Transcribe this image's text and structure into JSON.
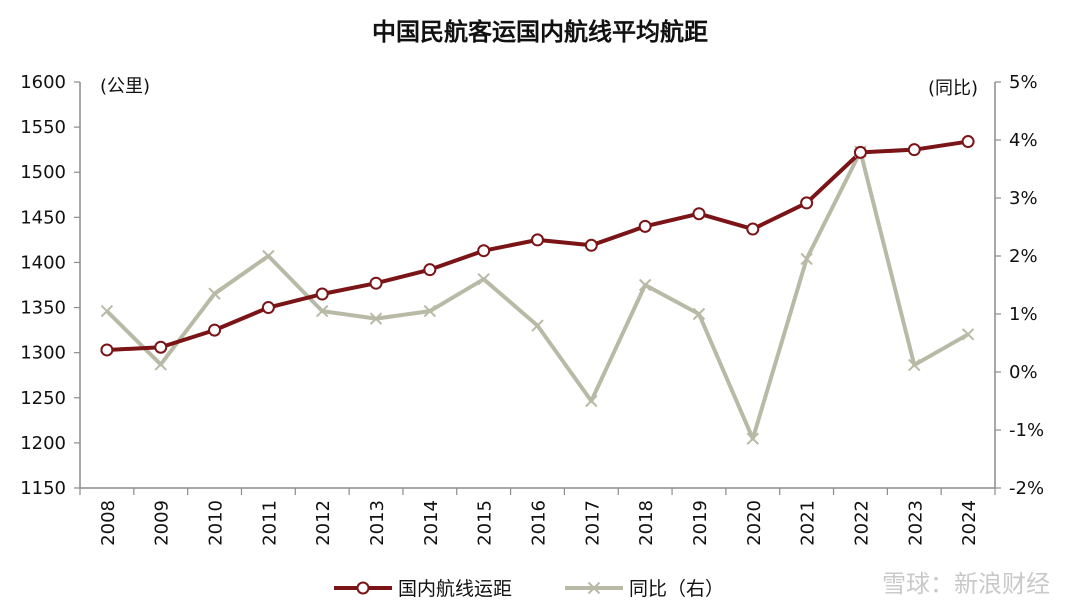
{
  "chart_data": {
    "type": "line",
    "title": "中国民航客运国内航线平均航距",
    "left_unit": "(公里)",
    "right_unit": "(同比)",
    "categories": [
      "2008",
      "2009",
      "2010",
      "2011",
      "2012",
      "2013",
      "2014",
      "2015",
      "2016",
      "2017",
      "2018",
      "2019",
      "2020",
      "2021",
      "2022",
      "2023",
      "2024"
    ],
    "ylim_left": [
      1150,
      1600
    ],
    "ylim_right": [
      -2,
      5
    ],
    "left_ticks": [
      "1600",
      "1550",
      "1500",
      "1450",
      "1400",
      "1350",
      "1300",
      "1250",
      "1200",
      "1150"
    ],
    "right_ticks": [
      "5%",
      "4%",
      "3%",
      "2%",
      "1%",
      "0%",
      "-1%",
      "-2%"
    ],
    "series": [
      {
        "name": "国内航线运距",
        "axis": "left",
        "color": "#7a1416",
        "marker": "circle",
        "values": [
          1303,
          1306,
          1325,
          1350,
          1365,
          1377,
          1392,
          1413,
          1425,
          1419,
          1440,
          1454,
          1437,
          1466,
          1522,
          1525,
          1534
        ]
      },
      {
        "name": "同比（右）",
        "axis": "right",
        "color": "#b9baa6",
        "marker": "x",
        "values": [
          1.05,
          0.13,
          1.35,
          2.0,
          1.05,
          0.92,
          1.05,
          1.6,
          0.8,
          -0.5,
          1.5,
          1.0,
          -1.15,
          1.95,
          3.8,
          0.12,
          0.65
        ]
      }
    ],
    "grid": false,
    "legend": "bottom-center",
    "watermark": "雪球：新浪财经"
  }
}
